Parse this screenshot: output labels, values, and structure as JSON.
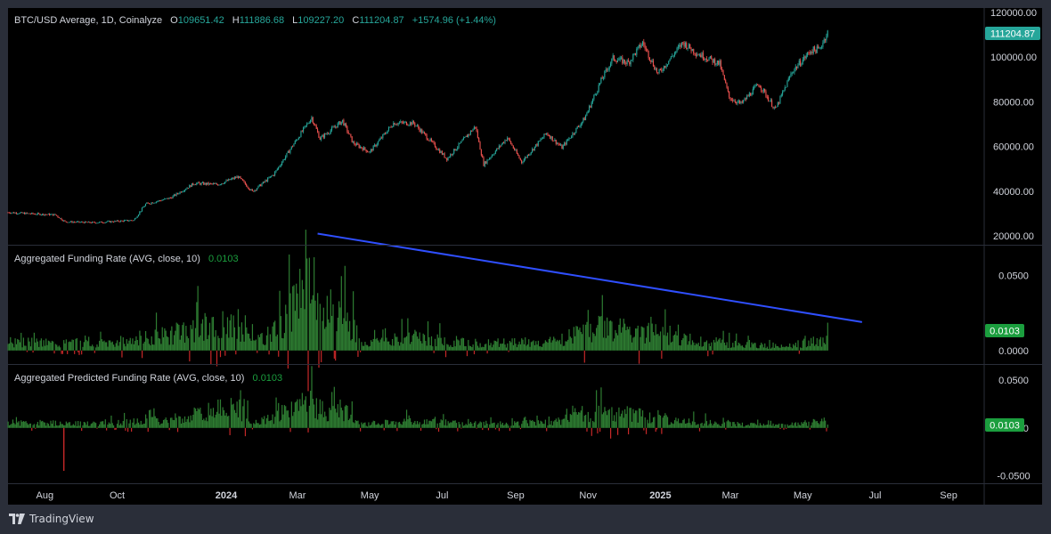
{
  "colors": {
    "background": "#000000",
    "frame": "#2a2e39",
    "text": "#d1d4dc",
    "muted": "#b2b5be",
    "up": "#26a69a",
    "down": "#ef5350",
    "funding_pos": "#2e7d32",
    "funding_neg": "#c62828",
    "trend_line": "#2f4fff",
    "label_green": "#1b9e3e"
  },
  "price_pane": {
    "symbol": "BTC/USD Average, 1D, Coinalyze",
    "o_label": "O",
    "open": "109651.42",
    "h_label": "H",
    "high": "111886.68",
    "l_label": "L",
    "low": "109227.20",
    "c_label": "C",
    "close": "111204.87",
    "change": "+1574.96 (+1.44%)",
    "last_price_label": "111204.87"
  },
  "funding_pane": {
    "title": "Aggregated Funding Rate (AVG, close, 10)",
    "value": "0.0103",
    "last_label": "0.0103"
  },
  "predicted_pane": {
    "title": "Aggregated Predicted Funding Rate (AVG, close, 10)",
    "value": "0.0103",
    "last_label": "0.0103"
  },
  "brand": {
    "name": "TradingView",
    "icon": "tradingview-logo-icon"
  },
  "chart_data": [
    {
      "type": "candlestick",
      "name": "BTC/USD Average",
      "x_ticks": [
        "Aug",
        "Oct",
        "2024",
        "Mar",
        "May",
        "Jul",
        "Sep",
        "Nov",
        "2025",
        "Mar",
        "May",
        "Jul",
        "Sep"
      ],
      "ylim": [
        16000,
        122000
      ],
      "y_ticks": [
        "120000.00",
        "100000.00",
        "80000.00",
        "60000.00",
        "40000.00",
        "20000.00"
      ],
      "close_path": [
        [
          "2023-07-01",
          30500
        ],
        [
          "2023-07-20",
          29900
        ],
        [
          "2023-08-10",
          29400
        ],
        [
          "2023-08-18",
          26300
        ],
        [
          "2023-09-12",
          25900
        ],
        [
          "2023-10-15",
          27000
        ],
        [
          "2023-10-25",
          34200
        ],
        [
          "2023-11-15",
          37000
        ],
        [
          "2023-12-05",
          43500
        ],
        [
          "2023-12-25",
          43000
        ],
        [
          "2024-01-11",
          46500
        ],
        [
          "2024-01-23",
          39800
        ],
        [
          "2024-02-10",
          47500
        ],
        [
          "2024-02-28",
          62000
        ],
        [
          "2024-03-13",
          73000
        ],
        [
          "2024-03-20",
          63500
        ],
        [
          "2024-04-08",
          71500
        ],
        [
          "2024-04-17",
          61500
        ],
        [
          "2024-05-01",
          57500
        ],
        [
          "2024-05-21",
          70500
        ],
        [
          "2024-06-07",
          70500
        ],
        [
          "2024-07-05",
          54500
        ],
        [
          "2024-07-29",
          69000
        ],
        [
          "2024-08-05",
          52000
        ],
        [
          "2024-08-25",
          64000
        ],
        [
          "2024-09-06",
          53000
        ],
        [
          "2024-09-27",
          66000
        ],
        [
          "2024-10-10",
          59500
        ],
        [
          "2024-10-29",
          72500
        ],
        [
          "2024-11-12",
          89500
        ],
        [
          "2024-11-22",
          99500
        ],
        [
          "2024-12-05",
          97500
        ],
        [
          "2024-12-17",
          106500
        ],
        [
          "2024-12-30",
          92500
        ],
        [
          "2025-01-20",
          106500
        ],
        [
          "2025-01-31",
          102000
        ],
        [
          "2025-02-20",
          97000
        ],
        [
          "2025-02-28",
          82000
        ],
        [
          "2025-03-10",
          79000
        ],
        [
          "2025-03-25",
          88000
        ],
        [
          "2025-04-08",
          76500
        ],
        [
          "2025-04-22",
          93500
        ],
        [
          "2025-05-08",
          103000
        ],
        [
          "2025-05-15",
          103500
        ],
        [
          "2025-05-22",
          111204.87
        ]
      ],
      "last_bar": {
        "open": 109651.42,
        "high": 111886.68,
        "low": 109227.2,
        "close": 111204.87
      }
    },
    {
      "type": "bar",
      "name": "Aggregated Funding Rate (AVG, close, 10)",
      "y_ticks": [
        "0.0500",
        "0.0000"
      ],
      "ylim": [
        -0.009,
        0.07
      ],
      "envelope": [
        [
          "2023-07-01",
          0.008
        ],
        [
          "2023-09-15",
          0.007
        ],
        [
          "2023-11-15",
          0.015
        ],
        [
          "2023-12-20",
          0.025
        ],
        [
          "2024-01-10",
          0.022
        ],
        [
          "2024-01-25",
          0.008
        ],
        [
          "2024-02-15",
          0.02
        ],
        [
          "2024-03-01",
          0.045
        ],
        [
          "2024-03-13",
          0.06
        ],
        [
          "2024-03-25",
          0.025
        ],
        [
          "2024-04-10",
          0.035
        ],
        [
          "2024-04-25",
          0.005
        ],
        [
          "2024-06-01",
          0.012
        ],
        [
          "2024-08-01",
          0.007
        ],
        [
          "2024-10-01",
          0.008
        ],
        [
          "2024-11-15",
          0.022
        ],
        [
          "2024-12-15",
          0.02
        ],
        [
          "2025-01-15",
          0.012
        ],
        [
          "2025-02-15",
          0.008
        ],
        [
          "2025-03-15",
          0.005
        ],
        [
          "2025-04-15",
          0.004
        ],
        [
          "2025-05-22",
          0.0103
        ]
      ],
      "trendline": [
        [
          "2024-03-18",
          0.078
        ],
        [
          "2025-06-20",
          0.019
        ]
      ]
    },
    {
      "type": "bar",
      "name": "Aggregated Predicted Funding Rate (AVG, close, 10)",
      "y_ticks": [
        "0.0500",
        "0.0000",
        "-0.0500"
      ],
      "ylim": [
        -0.058,
        0.066
      ],
      "envelope": [
        [
          "2023-07-01",
          0.008
        ],
        [
          "2023-09-15",
          0.006
        ],
        [
          "2023-11-15",
          0.012
        ],
        [
          "2023-12-20",
          0.025
        ],
        [
          "2024-01-10",
          0.03
        ],
        [
          "2024-01-25",
          0.008
        ],
        [
          "2024-02-15",
          0.018
        ],
        [
          "2024-03-01",
          0.03
        ],
        [
          "2024-03-13",
          0.04
        ],
        [
          "2024-03-25",
          0.02
        ],
        [
          "2024-04-10",
          0.028
        ],
        [
          "2024-04-25",
          0.005
        ],
        [
          "2024-06-01",
          0.01
        ],
        [
          "2024-08-01",
          0.006
        ],
        [
          "2024-10-01",
          0.008
        ],
        [
          "2024-11-15",
          0.025
        ],
        [
          "2024-12-15",
          0.018
        ],
        [
          "2025-01-15",
          0.01
        ],
        [
          "2025-02-15",
          0.007
        ],
        [
          "2025-03-15",
          0.005
        ],
        [
          "2025-04-15",
          0.004
        ],
        [
          "2025-05-22",
          0.0103
        ]
      ],
      "notable_low": [
        "2023-08-17",
        -0.045
      ]
    }
  ]
}
